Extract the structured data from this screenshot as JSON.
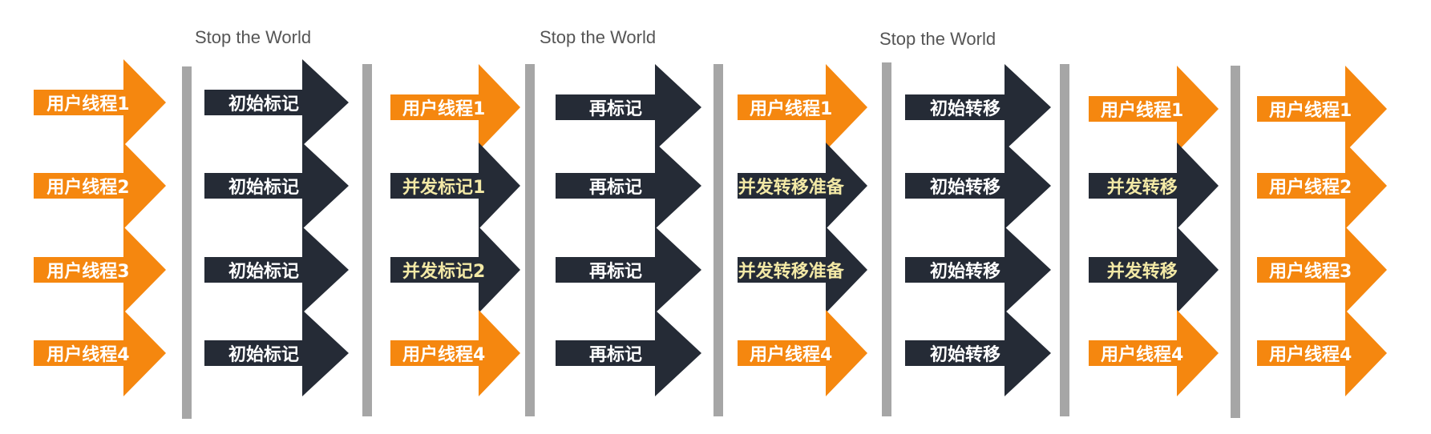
{
  "stw_labels": [
    "Stop the World",
    "Stop the World",
    "Stop the World"
  ],
  "columns": [
    {
      "name": "phase-1-user-threads",
      "kind": "user",
      "items": [
        "用户线程1",
        "用户线程2",
        "用户线程3",
        "用户线程4"
      ]
    },
    {
      "name": "phase-2-initial-mark",
      "kind": "init",
      "items": [
        "初始标记",
        "初始标记",
        "初始标记",
        "初始标记"
      ]
    },
    {
      "name": "phase-3-concurrent-mark",
      "kind": "mixed",
      "items": [
        "用户线程1",
        "并发标记1",
        "并发标记2",
        "用户线程4"
      ]
    },
    {
      "name": "phase-4-remark",
      "kind": "init",
      "items": [
        "再标记",
        "再标记",
        "再标记",
        "再标记"
      ]
    },
    {
      "name": "phase-5-concurrent-relocate-prep",
      "kind": "mixed",
      "items": [
        "用户线程1",
        "并发转移准备",
        "并发转移准备",
        "用户线程4"
      ]
    },
    {
      "name": "phase-6-initial-relocate",
      "kind": "init",
      "items": [
        "初始转移",
        "初始转移",
        "初始转移",
        "初始转移"
      ]
    },
    {
      "name": "phase-7-concurrent-relocate",
      "kind": "mixed",
      "items": [
        "用户线程1",
        "并发转移",
        "并发转移",
        "用户线程4"
      ]
    },
    {
      "name": "phase-8-user-threads",
      "kind": "user",
      "items": [
        "用户线程1",
        "用户线程2",
        "用户线程3",
        "用户线程4"
      ]
    }
  ],
  "colors": {
    "user": "#f5870f",
    "gc": "#252b36",
    "concurrent_text": "#f3e9a6",
    "bar": "#a6a6a6"
  }
}
